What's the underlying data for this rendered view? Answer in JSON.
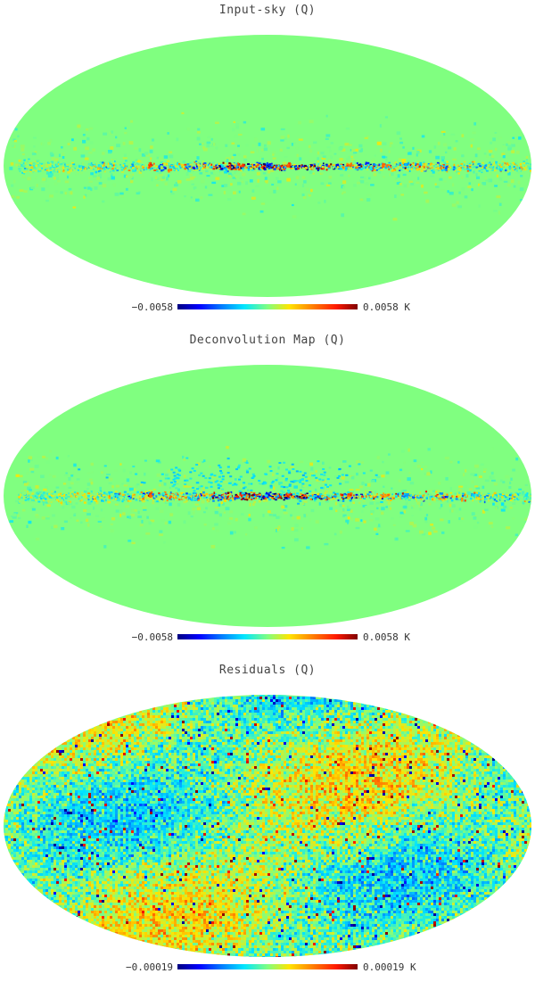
{
  "map_colors": {
    "background": "#80ff80",
    "scale": [
      "#00007f",
      "#0000ff",
      "#0080ff",
      "#00e5ff",
      "#7fff80",
      "#ffe500",
      "#ff8000",
      "#ff1a00",
      "#7f0000"
    ]
  },
  "panels": [
    {
      "title": "Input-sky (Q)",
      "cb_min": "−0.0058",
      "cb_max": "0.0058 K",
      "pattern": "galactic-plane"
    },
    {
      "title": "Deconvolution Map (Q)",
      "cb_min": "−0.0058",
      "cb_max": "0.0058 K",
      "pattern": "galactic-plane"
    },
    {
      "title": "Residuals (Q)",
      "cb_min": "−0.00019",
      "cb_max": "0.00019 K",
      "pattern": "noise"
    }
  ]
}
